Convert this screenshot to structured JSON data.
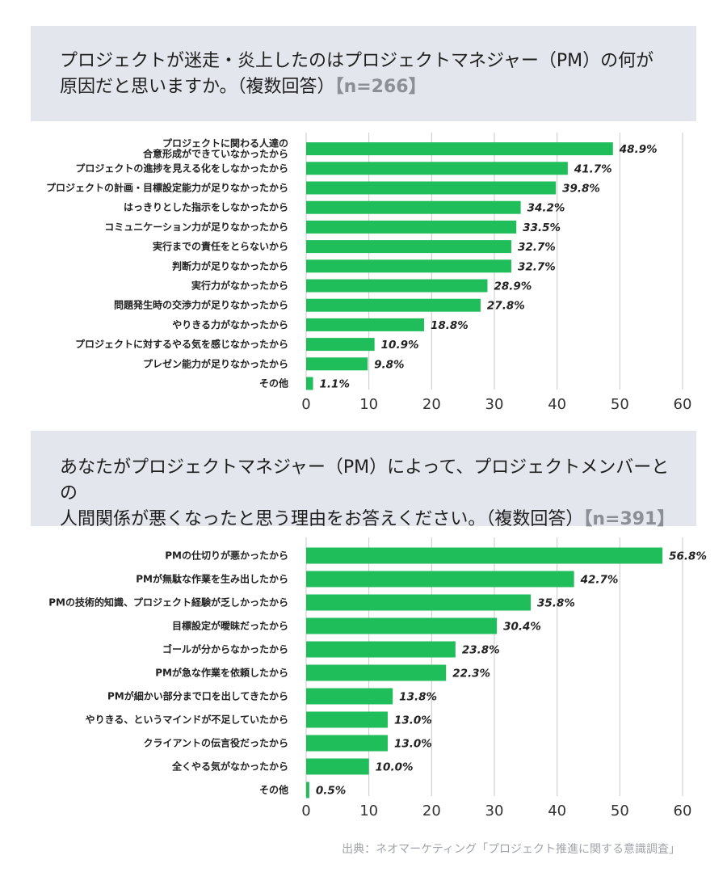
{
  "source": "出典：ネオマーケティング「プロジェクト推進に関する意識調査」",
  "colors": {
    "bar": "#1fbe5b",
    "panel": "#e3e6ec",
    "grid": "#c9c9c9",
    "n_label": "#8b8f96"
  },
  "chart_data": [
    {
      "type": "bar",
      "orientation": "horizontal",
      "title_line1": "プロジェクトが迷走・炎上したのはプロジェクトマネジャー（PM）の何が",
      "title_line2": "原因だと思いますか。（複数回答）",
      "n_label": "【n=266】",
      "categories": [
        [
          "プロジェクトに関わる人達の",
          "合意形成ができていなかったから"
        ],
        [
          "プロジェクトの進捗を見える化をしなかったから"
        ],
        [
          "プロジェクトの計画・目標設定能力が足りなかったから"
        ],
        [
          "はっきりとした指示をしなかったから"
        ],
        [
          "コミュニケーション力が足りなかったから"
        ],
        [
          "実行までの責任をとらないから"
        ],
        [
          "判断力が足りなかったから"
        ],
        [
          "実行力がなかったから"
        ],
        [
          "問題発生時の交渉力が足りなかったから"
        ],
        [
          "やりきる力がなかったから"
        ],
        [
          "プロジェクトに対するやる気を感じなかったから"
        ],
        [
          "プレゼン能力が足りなかったから"
        ],
        [
          "その他"
        ]
      ],
      "values": [
        48.9,
        41.7,
        39.8,
        34.2,
        33.5,
        32.7,
        32.7,
        28.9,
        27.8,
        18.8,
        10.9,
        9.8,
        1.1
      ],
      "value_labels": [
        "48.9%",
        "41.7%",
        "39.8%",
        "34.2%",
        "33.5%",
        "32.7%",
        "32.7%",
        "28.9%",
        "27.8%",
        "18.8%",
        "10.9%",
        "9.8%",
        "1.1%"
      ],
      "xlim": [
        0,
        60
      ],
      "xticks": [
        "0",
        "10",
        "20",
        "30",
        "40",
        "50",
        "60"
      ],
      "grid": true
    },
    {
      "type": "bar",
      "orientation": "horizontal",
      "title_line1": "あなたがプロジェクトマネジャー（PM）によって、プロジェクトメンバーとの",
      "title_line2": "人間関係が悪くなったと思う理由をお答えください。（複数回答）",
      "n_label": "【n=391】",
      "categories": [
        [
          "PMの仕切りが悪かったから"
        ],
        [
          "PMが無駄な作業を生み出したから"
        ],
        [
          "PMの技術的知識、プロジェクト経験が乏しかったから"
        ],
        [
          "目標設定が曖昧だったから"
        ],
        [
          "ゴールが分からなかったから"
        ],
        [
          "PMが急な作業を依頼したから"
        ],
        [
          "PMが細かい部分まで口を出してきたから"
        ],
        [
          "やりきる、というマインドが不足していたから"
        ],
        [
          "クライアントの伝言役だったから"
        ],
        [
          "全くやる気がなかったから"
        ],
        [
          "その他"
        ]
      ],
      "values": [
        56.8,
        42.7,
        35.8,
        30.4,
        23.8,
        22.3,
        13.8,
        13.0,
        13.0,
        10.0,
        0.5
      ],
      "value_labels": [
        "56.8%",
        "42.7%",
        "35.8%",
        "30.4%",
        "23.8%",
        "22.3%",
        "13.8%",
        "13.0%",
        "13.0%",
        "10.0%",
        "0.5%"
      ],
      "xlim": [
        0,
        60
      ],
      "xticks": [
        "0",
        "10",
        "20",
        "30",
        "40",
        "50",
        "60"
      ],
      "grid": true
    }
  ]
}
